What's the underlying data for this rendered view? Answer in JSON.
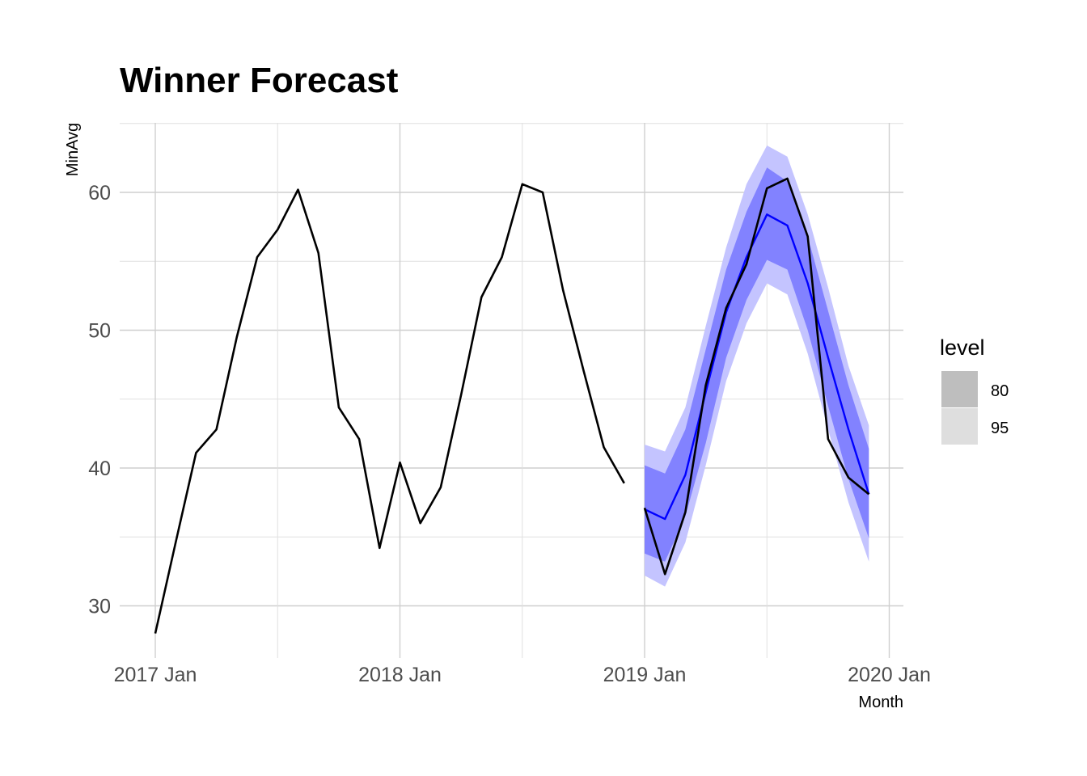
{
  "chart_data": {
    "type": "line",
    "title": "Winner Forecast",
    "xlabel": "Month",
    "ylabel": "MinAvg",
    "ylim": [
      26,
      65
    ],
    "y_ticks": [
      30,
      40,
      50,
      60
    ],
    "x_ticks": [
      "2017 Jan",
      "2018 Jan",
      "2019 Jan",
      "2020 Jan"
    ],
    "x_range": [
      "2017-01",
      "2020-01"
    ],
    "grid": true,
    "legend": {
      "title": "level",
      "position": "right",
      "items": [
        {
          "label": "80",
          "color": "#bebebe"
        },
        {
          "label": "95",
          "color": "#dedede"
        }
      ]
    },
    "colors": {
      "actual": "#000000",
      "forecast_mean": "#0000ff",
      "band_80": "#8282ff",
      "band_95": "#c4c4ff"
    },
    "series": [
      {
        "role": "actual",
        "x": [
          "2017-01",
          "2017-02",
          "2017-03",
          "2017-04",
          "2017-05",
          "2017-06",
          "2017-07",
          "2017-08",
          "2017-09",
          "2017-10",
          "2017-11",
          "2017-12",
          "2018-01",
          "2018-02",
          "2018-03",
          "2018-04",
          "2018-05",
          "2018-06",
          "2018-07",
          "2018-08",
          "2018-09",
          "2018-10",
          "2018-11",
          "2018-12",
          "2019-01",
          "2019-02",
          "2019-03",
          "2019-04",
          "2019-05",
          "2019-06",
          "2019-07",
          "2019-08",
          "2019-09",
          "2019-10",
          "2019-11",
          "2019-12"
        ],
        "values": [
          28.0,
          34.6,
          41.1,
          42.8,
          49.5,
          55.3,
          57.3,
          60.2,
          55.6,
          44.4,
          42.1,
          34.2,
          40.4,
          36.0,
          38.6,
          45.3,
          52.4,
          55.3,
          60.6,
          60.0,
          52.9,
          47.1,
          41.5,
          38.9,
          37.1,
          32.3,
          36.8,
          46.0,
          51.6,
          54.8,
          60.3,
          61.0,
          56.8,
          42.1,
          39.3,
          38.1
        ]
      },
      {
        "role": "forecast_mean",
        "x": [
          "2019-01",
          "2019-02",
          "2019-03",
          "2019-04",
          "2019-05",
          "2019-06",
          "2019-07",
          "2019-08",
          "2019-09",
          "2019-10",
          "2019-11",
          "2019-12"
        ],
        "values": [
          37.0,
          36.3,
          39.5,
          45.5,
          51.3,
          55.3,
          58.4,
          57.6,
          53.4,
          48.0,
          42.8,
          38.1
        ]
      }
    ],
    "intervals": {
      "x": [
        "2019-01",
        "2019-02",
        "2019-03",
        "2019-04",
        "2019-05",
        "2019-06",
        "2019-07",
        "2019-08",
        "2019-09",
        "2019-10",
        "2019-11",
        "2019-12"
      ],
      "lower_95": [
        32.2,
        31.4,
        34.6,
        40.2,
        46.3,
        50.5,
        53.4,
        52.6,
        48.3,
        42.8,
        37.5,
        33.2
      ],
      "upper_95": [
        41.7,
        41.2,
        44.4,
        50.3,
        56.0,
        60.6,
        63.4,
        62.6,
        58.4,
        53.1,
        47.4,
        43.1
      ],
      "lower_80": [
        33.8,
        33.2,
        36.5,
        41.8,
        48.0,
        52.2,
        55.1,
        54.4,
        50.0,
        44.5,
        39.2,
        34.9
      ],
      "upper_80": [
        40.2,
        39.6,
        42.8,
        48.6,
        54.4,
        58.6,
        61.8,
        60.8,
        56.8,
        51.4,
        46.0,
        41.4
      ]
    }
  }
}
